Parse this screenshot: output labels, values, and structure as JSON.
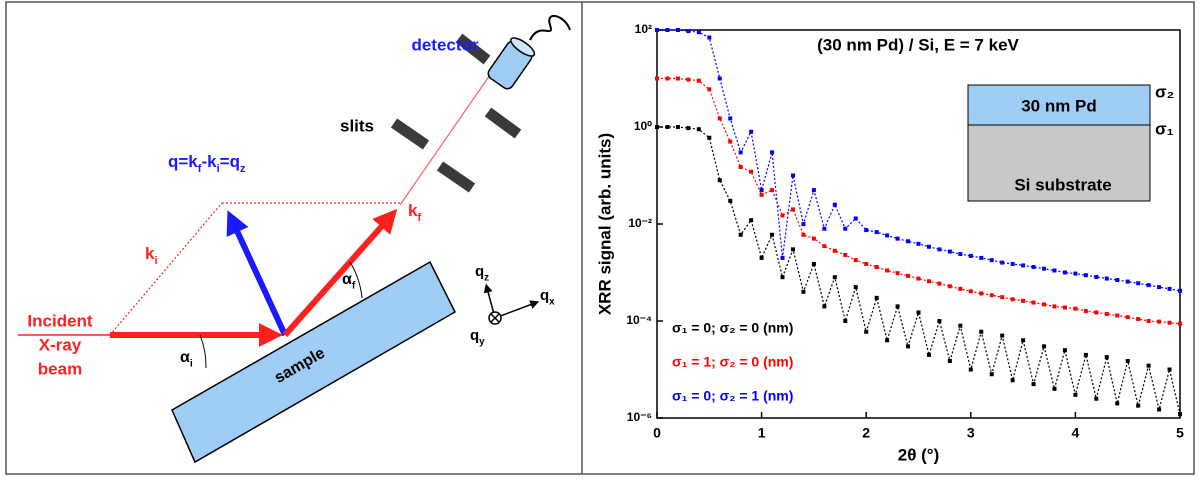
{
  "diagram": {
    "detector": "detector",
    "slits": "slits",
    "q_label": [
      "q=k",
      "f",
      "-k",
      "i",
      "=q",
      "z"
    ],
    "k_i": {
      "text": "k",
      "sub": "i"
    },
    "k_f": {
      "text": "k",
      "sub": "f"
    },
    "alpha_i": {
      "text": "α",
      "sub": "i"
    },
    "alpha_f": {
      "text": "α",
      "sub": "f"
    },
    "incident": [
      "Incident",
      "X-ray",
      "beam"
    ],
    "sample": "sample",
    "q_x": {
      "text": "q",
      "sub": "x"
    },
    "q_y": {
      "text": "q",
      "sub": "y"
    },
    "q_z": {
      "text": "q",
      "sub": "z"
    }
  },
  "chart_data": {
    "type": "line",
    "title": "(30 nm Pd) / Si, E = 7 keV",
    "x_label": "2θ (°)",
    "y_label": "XRR signal (arb. units)",
    "x": [
      0,
      0.1,
      0.2,
      0.3,
      0.4,
      0.5,
      0.6,
      0.7,
      0.8,
      0.9,
      1,
      1.1,
      1.2,
      1.3,
      1.4,
      1.5,
      1.6,
      1.7,
      1.8,
      1.9,
      2,
      2.1,
      2.2,
      2.3,
      2.4,
      2.5,
      2.6,
      2.7,
      2.8,
      2.9,
      3,
      3.1,
      3.2,
      3.3,
      3.4,
      3.5,
      3.6,
      3.7,
      3.8,
      3.9,
      4,
      4.1,
      4.2,
      4.3,
      4.4,
      4.5,
      4.6,
      4.7,
      4.8,
      4.9,
      5
    ],
    "series": [
      {
        "name": "σ₁ = 0; σ₂ = 0 (nm)",
        "color": "#000000",
        "values": [
          1,
          1,
          1,
          0.95,
          0.9,
          0.6,
          0.08,
          0.03,
          0.006,
          0.012,
          0.002,
          0.006,
          0.0008,
          0.003,
          0.0004,
          0.0015,
          0.0002,
          0.0008,
          0.0001,
          0.0005,
          6e-05,
          0.0003,
          4e-05,
          0.0002,
          3e-05,
          0.00015,
          2e-05,
          0.0001,
          1.5e-05,
          8e-05,
          1e-05,
          6e-05,
          8e-06,
          5e-05,
          6e-06,
          4e-05,
          5e-06,
          3e-05,
          4e-06,
          2.5e-05,
          3e-06,
          2e-05,
          2.5e-06,
          1.8e-05,
          2e-06,
          1.5e-05,
          1.8e-06,
          1.2e-05,
          1.5e-06,
          1e-05,
          1.2e-06
        ]
      },
      {
        "name": "σ₁ = 1; σ₂ = 0 (nm)",
        "color": "#ff0000",
        "values": [
          10,
          10,
          10,
          9.5,
          9,
          6,
          1.5,
          0.5,
          0.15,
          0.12,
          0.04,
          0.05,
          0.015,
          0.02,
          0.006,
          0.005,
          0.0035,
          0.0028,
          0.0023,
          0.0018,
          0.0015,
          0.0013,
          0.0011,
          0.00097,
          0.00085,
          0.00075,
          0.00066,
          0.00059,
          0.00052,
          0.00046,
          0.00041,
          0.00037,
          0.00034,
          0.00031,
          0.00028,
          0.00026,
          0.00024,
          0.00022,
          0.0002,
          0.00019,
          0.00018,
          0.00016,
          0.00015,
          0.00014,
          0.00013,
          0.00012,
          0.00011,
          0.0001,
          9.7e-05,
          9.2e-05,
          8.8e-05
        ]
      },
      {
        "name": "σ₁ = 0; σ₂ = 1 (nm)",
        "color": "#0000ff",
        "values": [
          100,
          100,
          100,
          95,
          90,
          70,
          10,
          1.5,
          0.3,
          0.8,
          0.05,
          0.3,
          0.002,
          0.1,
          0.01,
          0.05,
          0.008,
          0.025,
          0.008,
          0.013,
          0.0075,
          0.0068,
          0.0058,
          0.005,
          0.0044,
          0.0039,
          0.0034,
          0.003,
          0.0027,
          0.0024,
          0.0022,
          0.002,
          0.0018,
          0.0016,
          0.0015,
          0.0014,
          0.0013,
          0.0012,
          0.0011,
          0.001,
          0.00095,
          0.00088,
          0.00081,
          0.00075,
          0.0007,
          0.00065,
          0.0006,
          0.00055,
          0.0005,
          0.00046,
          0.00042
        ]
      }
    ],
    "xlim": [
      0,
      5
    ],
    "xticks": [
      0,
      1,
      2,
      3,
      4,
      5
    ],
    "ylim": [
      1e-06,
      100
    ],
    "yticks": [
      {
        "value": 1e-06,
        "label": "10⁻⁶"
      },
      {
        "value": 0.0001,
        "label": "10⁻⁴"
      },
      {
        "value": 0.01,
        "label": "10⁻²"
      },
      {
        "value": 1,
        "label": "10⁰"
      },
      {
        "value": 100,
        "label": "10²"
      }
    ],
    "y_log": true,
    "inset": {
      "top_label": "30 nm Pd",
      "bottom_label": "Si substrate",
      "top_sigma": "σ₂",
      "bottom_sigma": "σ₁"
    }
  }
}
